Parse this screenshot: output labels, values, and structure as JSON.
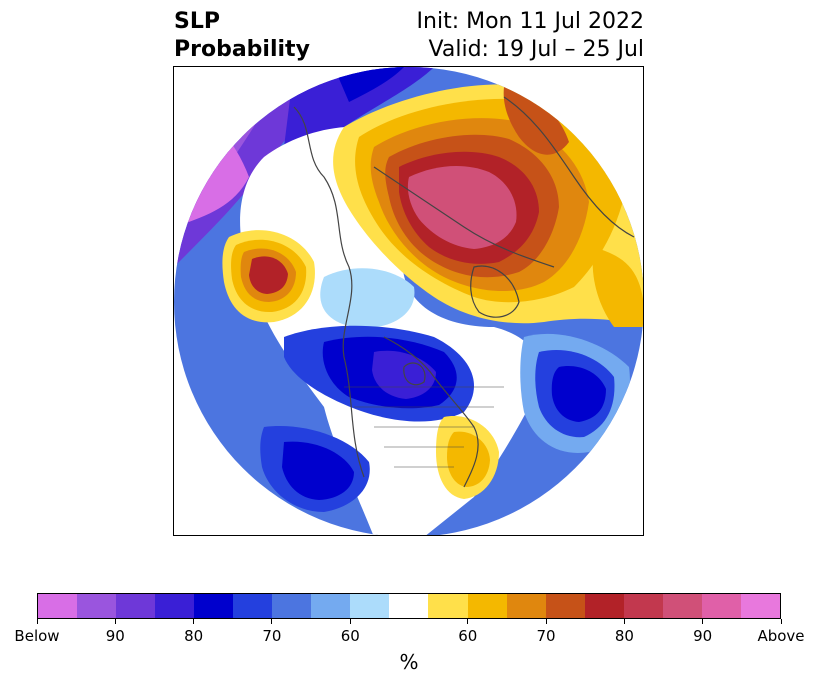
{
  "header": {
    "title_line1": "SLP",
    "title_line2": "Probability",
    "init_text": "Init: Mon 11 Jul 2022",
    "valid_text": "Valid: 19 Jul – 25 Jul"
  },
  "map": {
    "projection": "polar stereographic (northern hemisphere)",
    "colors": {
      "below_extreme": "#d86ee6",
      "below_90": "#9a55de",
      "below_85": "#6e38d8",
      "below_80": "#3a1fd6",
      "below_75": "#0000cd",
      "below_70": "#2440de",
      "below_65": "#4c75e0",
      "below_60": "#74aaf0",
      "below_55": "#acdcfb",
      "neutral": "#ffffff",
      "above_55": "#ffe04a",
      "above_60": "#f4b800",
      "above_65": "#e0870e",
      "above_70": "#c65218",
      "above_75": "#b22228",
      "above_80": "#c2384e",
      "above_85": "#d05078",
      "above_90": "#e060a8",
      "above_extreme": "#e878dd"
    }
  },
  "colorbar": {
    "segments": [
      "#d86ee6",
      "#9a55de",
      "#6e38d8",
      "#3a1fd6",
      "#0000cd",
      "#2440de",
      "#4c75e0",
      "#74aaf0",
      "#acdcfb",
      "#ffffff",
      "#ffe04a",
      "#f4b800",
      "#e0870e",
      "#c65218",
      "#b22228",
      "#c2384e",
      "#d05078",
      "#e060a8",
      "#e878dd"
    ],
    "ticks": [
      "Below",
      "90",
      "80",
      "70",
      "60",
      "60",
      "70",
      "80",
      "90",
      "Above"
    ],
    "unit": "%"
  }
}
